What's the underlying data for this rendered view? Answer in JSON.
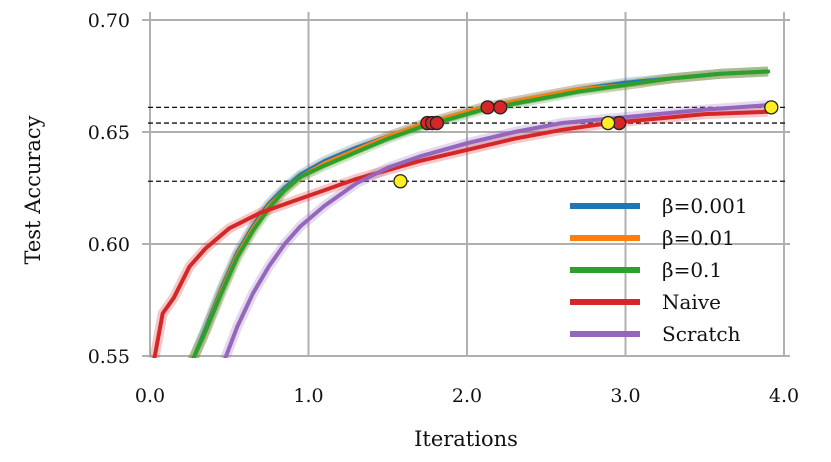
{
  "chart_data": {
    "type": "line",
    "title": "",
    "xlabel": "Iterations",
    "ylabel": "Test Accuracy",
    "xlim": [
      0,
      4.0
    ],
    "ylim": [
      0.55,
      0.7
    ],
    "xticks": [
      0,
      1,
      2,
      3,
      4
    ],
    "xtick_labels": [
      "0.0",
      "1.0",
      "2.0",
      "3.0",
      "4.0"
    ],
    "yticks": [
      0.55,
      0.6,
      0.65,
      0.7
    ],
    "ytick_labels": [
      "0.55",
      "0.60",
      "0.65",
      "0.70"
    ],
    "grid": true,
    "legend_position": "lower-right",
    "series": [
      {
        "name": "β=0.001",
        "color": "#1f77b4",
        "x": [
          0.28,
          0.35,
          0.45,
          0.55,
          0.65,
          0.75,
          0.85,
          0.95,
          1.1,
          1.3,
          1.5,
          1.7,
          1.9,
          2.1,
          2.4,
          2.7,
          3.0,
          3.3,
          3.6,
          3.9
        ],
        "y": [
          0.55,
          0.562,
          0.58,
          0.596,
          0.608,
          0.618,
          0.625,
          0.631,
          0.637,
          0.643,
          0.648,
          0.653,
          0.657,
          0.661,
          0.665,
          0.669,
          0.672,
          0.674,
          0.676,
          0.677
        ]
      },
      {
        "name": "β=0.01",
        "color": "#ff7f0e",
        "x": [
          0.28,
          0.35,
          0.45,
          0.55,
          0.65,
          0.75,
          0.85,
          0.95,
          1.1,
          1.3,
          1.5,
          1.7,
          1.9,
          2.1,
          2.4,
          2.7,
          3.0,
          3.3,
          3.6,
          3.9
        ],
        "y": [
          0.55,
          0.561,
          0.579,
          0.595,
          0.607,
          0.617,
          0.624,
          0.63,
          0.636,
          0.642,
          0.648,
          0.653,
          0.657,
          0.661,
          0.665,
          0.669,
          0.671,
          0.674,
          0.676,
          0.677
        ]
      },
      {
        "name": "β=0.1",
        "color": "#2ca02c",
        "x": [
          0.28,
          0.35,
          0.45,
          0.55,
          0.65,
          0.75,
          0.85,
          0.95,
          1.1,
          1.3,
          1.5,
          1.7,
          1.9,
          2.1,
          2.4,
          2.7,
          3.0,
          3.3,
          3.6,
          3.9
        ],
        "y": [
          0.55,
          0.561,
          0.578,
          0.594,
          0.606,
          0.616,
          0.624,
          0.63,
          0.635,
          0.641,
          0.647,
          0.652,
          0.656,
          0.66,
          0.664,
          0.668,
          0.671,
          0.674,
          0.676,
          0.677
        ]
      },
      {
        "name": "Naive",
        "color": "#d62728",
        "x": [
          0.03,
          0.08,
          0.15,
          0.25,
          0.35,
          0.5,
          0.7,
          0.9,
          1.1,
          1.3,
          1.5,
          1.7,
          2.0,
          2.3,
          2.6,
          2.9,
          3.2,
          3.5,
          3.9
        ],
        "y": [
          0.55,
          0.569,
          0.576,
          0.59,
          0.598,
          0.607,
          0.614,
          0.619,
          0.624,
          0.629,
          0.633,
          0.637,
          0.642,
          0.647,
          0.651,
          0.654,
          0.656,
          0.658,
          0.659
        ]
      },
      {
        "name": "Scratch",
        "color": "#9467bd",
        "x": [
          0.48,
          0.55,
          0.65,
          0.75,
          0.85,
          0.95,
          1.1,
          1.3,
          1.5,
          1.7,
          2.0,
          2.3,
          2.6,
          2.9,
          3.2,
          3.5,
          3.9
        ],
        "y": [
          0.55,
          0.563,
          0.578,
          0.59,
          0.6,
          0.608,
          0.617,
          0.627,
          0.634,
          0.639,
          0.645,
          0.65,
          0.654,
          0.656,
          0.658,
          0.66,
          0.662
        ]
      }
    ],
    "reference_lines": [
      0.661,
      0.654,
      0.628
    ],
    "markers": [
      {
        "x": 1.75,
        "y": 0.654,
        "color": "#d62728"
      },
      {
        "x": 1.78,
        "y": 0.654,
        "color": "#d62728"
      },
      {
        "x": 1.81,
        "y": 0.654,
        "color": "#d62728"
      },
      {
        "x": 2.13,
        "y": 0.661,
        "color": "#d62728"
      },
      {
        "x": 2.21,
        "y": 0.661,
        "color": "#d62728"
      },
      {
        "x": 2.96,
        "y": 0.654,
        "color": "#d62728"
      },
      {
        "x": 1.58,
        "y": 0.628,
        "color": "#ffee22"
      },
      {
        "x": 2.89,
        "y": 0.654,
        "color": "#ffee22"
      },
      {
        "x": 3.92,
        "y": 0.661,
        "color": "#ffee22"
      }
    ]
  }
}
